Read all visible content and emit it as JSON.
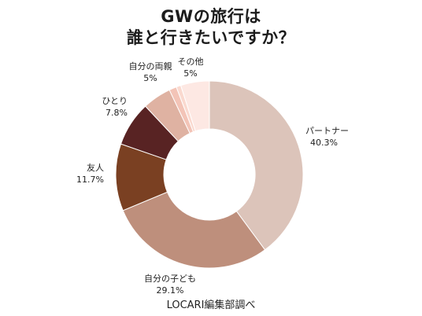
{
  "header": {
    "title_line1": "GWの旅行は",
    "title_line2": "誰と行きたいですか？"
  },
  "source": "LOCARI編集部調べ",
  "colors": {
    "background": "#ffffff",
    "text": "#222222"
  },
  "chart_data": {
    "type": "pie",
    "variant": "donut",
    "title": "GWの旅行は誰と行きたいですか？",
    "slices": [
      {
        "label": "パートナー",
        "value": 40.3,
        "value_label": "40.3%",
        "color": "#dcc4ba",
        "show_label": true
      },
      {
        "label": "自分の子ども",
        "value": 29.1,
        "value_label": "29.1%",
        "color": "#be8f7c",
        "show_label": true
      },
      {
        "label": "友人",
        "value": 11.7,
        "value_label": "11.7%",
        "color": "#7a4022",
        "show_label": true
      },
      {
        "label": "ひとり",
        "value": 7.8,
        "value_label": "7.8%",
        "color": "#582323",
        "show_label": true
      },
      {
        "label": "自分の両親",
        "value": 5,
        "value_label": "5%",
        "color": "#dfb2a2",
        "show_label": true
      },
      {
        "label": "",
        "value": 1.3,
        "value_label": "",
        "color": "#f3c4b7",
        "show_label": false
      },
      {
        "label": "",
        "value": 0.8,
        "value_label": "",
        "color": "#fad9cf",
        "show_label": false
      },
      {
        "label": "その他",
        "value": 5,
        "value_label": "5%",
        "color": "#fde8e3",
        "show_label": true
      }
    ],
    "start_angle": "12 o'clock",
    "direction": "clockwise",
    "legend": "none"
  }
}
